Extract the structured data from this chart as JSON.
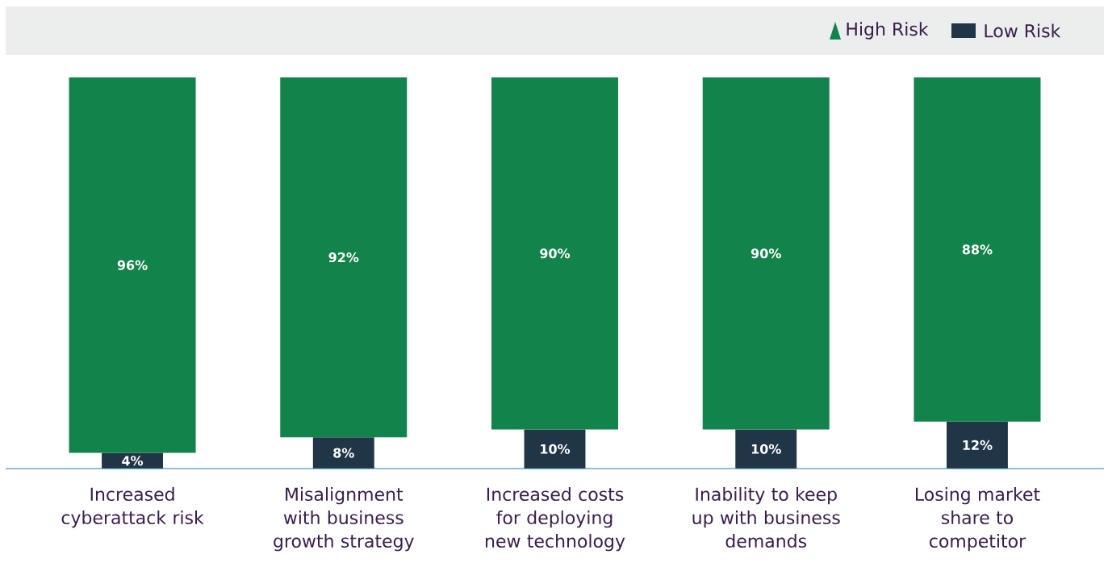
{
  "chart_data": {
    "type": "bar",
    "stacked": true,
    "legend": "top right",
    "categories": [
      "Increased cyberattack risk",
      "Misalignment with business growth strategy",
      "Increased costs for deploying new technology",
      "Inability to keep up with business demands",
      "Losing market share to competitor"
    ],
    "series": [
      {
        "name": "Low Risk",
        "color": "#203546",
        "values": [
          4,
          8,
          10,
          10,
          12
        ],
        "value_labels": [
          "4%",
          "8%",
          "10%",
          "10%",
          "12%"
        ]
      },
      {
        "name": "High Risk",
        "color": "#12834a",
        "values": [
          96,
          92,
          90,
          90,
          88
        ],
        "value_labels": [
          "96%",
          "92%",
          "90%",
          "90%",
          "88%"
        ]
      }
    ]
  }
}
